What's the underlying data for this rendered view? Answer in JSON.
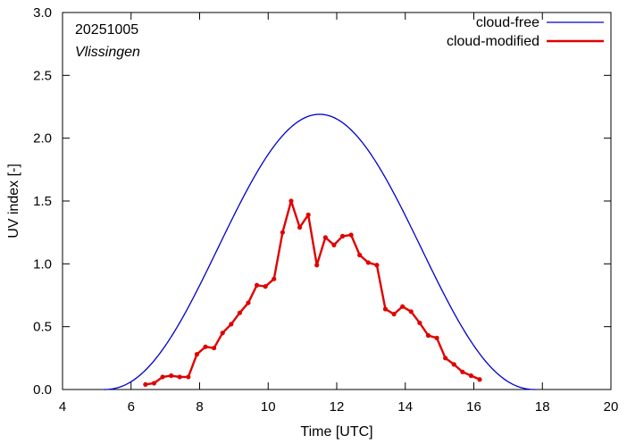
{
  "chart_data": {
    "type": "line",
    "title": "",
    "xlabel": "Time  [UTC]",
    "ylabel": "UV index  [-]",
    "xlim": [
      4,
      20
    ],
    "ylim": [
      0.0,
      3.0
    ],
    "x_ticks": [
      4,
      6,
      8,
      10,
      12,
      14,
      16,
      18,
      20
    ],
    "y_ticks": [
      0.0,
      0.5,
      1.0,
      1.5,
      2.0,
      2.5,
      3.0
    ],
    "y_tick_labels": [
      "0.0",
      "0.5",
      "1.0",
      "1.5",
      "2.0",
      "2.5",
      "3.0"
    ],
    "grid": false,
    "legend_position": "top-right",
    "annotations": {
      "date": "20251005",
      "station": "Vlissingen"
    },
    "series": [
      {
        "name": "cloud-free",
        "color": "#0000cc",
        "style": "line",
        "model": {
          "peak_time": 11.5,
          "peak_value": 2.19,
          "start_time": 5.2,
          "end_time": 17.8
        }
      },
      {
        "name": "cloud-modified",
        "color": "#e00000",
        "style": "line-points",
        "x": [
          6.42,
          6.67,
          6.92,
          7.17,
          7.42,
          7.67,
          7.92,
          8.17,
          8.42,
          8.67,
          8.92,
          9.17,
          9.42,
          9.67,
          9.92,
          10.17,
          10.42,
          10.67,
          10.92,
          11.17,
          11.42,
          11.67,
          11.92,
          12.17,
          12.42,
          12.67,
          12.92,
          13.17,
          13.42,
          13.67,
          13.92,
          14.17,
          14.42,
          14.67,
          14.92,
          15.17,
          15.42,
          15.67,
          15.92,
          16.17
        ],
        "values": [
          0.04,
          0.05,
          0.1,
          0.11,
          0.1,
          0.1,
          0.28,
          0.34,
          0.33,
          0.45,
          0.52,
          0.61,
          0.69,
          0.83,
          0.82,
          0.88,
          1.25,
          1.5,
          1.29,
          1.39,
          0.99,
          1.21,
          1.15,
          1.22,
          1.23,
          1.07,
          1.01,
          0.99,
          0.64,
          0.6,
          0.66,
          0.62,
          0.53,
          0.43,
          0.41,
          0.25,
          0.2,
          0.14,
          0.11,
          0.08
        ]
      }
    ]
  }
}
